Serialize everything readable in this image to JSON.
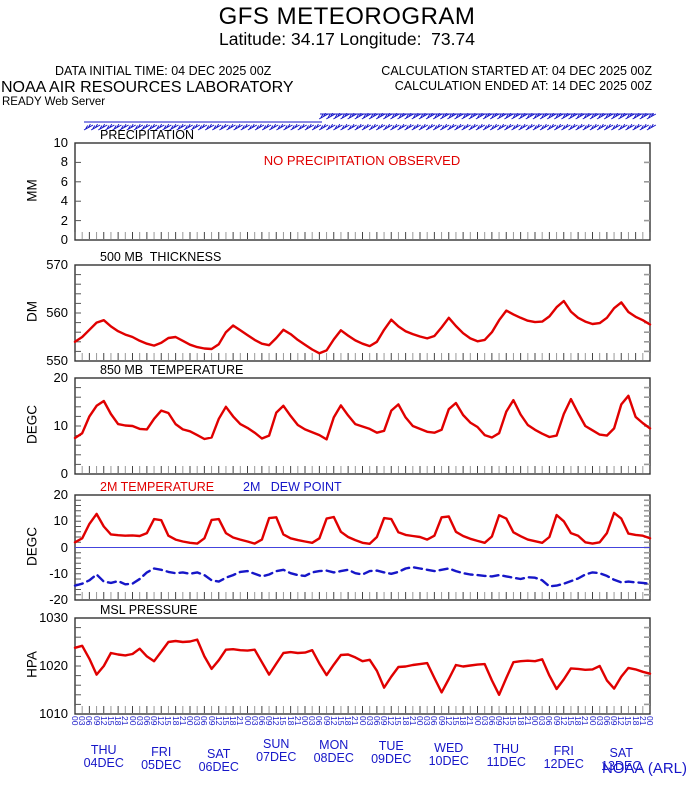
{
  "header": {
    "title": "GFS METEOROGRAM",
    "subtitle": "Latitude: 34.17 Longitude:  73.74",
    "data_initial_time": "DATA INITIAL TIME: 04 DEC 2025 00Z",
    "calc_started": "CALCULATION STARTED AT: 04 DEC 2025 00Z",
    "calc_ended": "CALCULATION ENDED AT: 14 DEC 2025 00Z",
    "org": "NOAA AIR RESOURCES LABORATORY",
    "server": "READY Web Server"
  },
  "footer": {
    "credit": "NOAA (ARL)"
  },
  "colors": {
    "red": "#e00000",
    "blue": "#1616c8",
    "axis": "#333333",
    "tick_gray": "#999999"
  },
  "x_axis": {
    "start": "04 DEC 2025 00Z",
    "end": "14 DEC 2025 00Z",
    "step_hours": 3,
    "hours": [
      "00",
      "03",
      "06",
      "09",
      "12",
      "15",
      "18",
      "21"
    ],
    "days": [
      {
        "name": "THU",
        "date": "04DEC"
      },
      {
        "name": "FRI",
        "date": "05DEC"
      },
      {
        "name": "SAT",
        "date": "06DEC"
      },
      {
        "name": "SUN",
        "date": "07DEC"
      },
      {
        "name": "MON",
        "date": "08DEC"
      },
      {
        "name": "TUE",
        "date": "09DEC"
      },
      {
        "name": "WED",
        "date": "10DEC"
      },
      {
        "name": "THU",
        "date": "11DEC"
      },
      {
        "name": "FRI",
        "date": "12DEC"
      },
      {
        "name": "SAT",
        "date": "13DEC"
      }
    ]
  },
  "chart_data": [
    {
      "type": "line",
      "title": "PRECIPITATION",
      "ylabel": "MM",
      "ylim": [
        0,
        10
      ],
      "yticks": [
        0,
        2,
        4,
        6,
        8,
        10
      ],
      "minor_step": 2,
      "annotation": "NO PRECIPITATION OBSERVED",
      "series": []
    },
    {
      "type": "line",
      "title": "500 MB  THICKNESS",
      "ylabel": "DM",
      "ylim": [
        550,
        570
      ],
      "yticks": [
        550,
        560,
        570
      ],
      "minor_step": 2,
      "series": [
        {
          "name": "500 MB THICKNESS",
          "color": "#e00000",
          "dash": false,
          "values": [
            554.0,
            555.0,
            556.5,
            558.0,
            558.5,
            557.2,
            556.2,
            555.5,
            555.0,
            554.2,
            553.6,
            553.2,
            553.8,
            554.8,
            555.0,
            554.2,
            553.4,
            552.9,
            552.6,
            552.5,
            553.5,
            556.0,
            557.4,
            556.4,
            555.4,
            554.4,
            553.6,
            553.3,
            554.8,
            556.5,
            555.6,
            554.4,
            553.4,
            552.4,
            551.6,
            552.2,
            554.5,
            556.4,
            555.3,
            554.3,
            553.6,
            553.1,
            554.0,
            556.5,
            558.6,
            557.2,
            556.2,
            555.6,
            555.1,
            554.7,
            555.2,
            557.0,
            559.0,
            557.3,
            555.8,
            554.7,
            554.1,
            554.4,
            556.0,
            558.5,
            560.5,
            559.7,
            559.0,
            558.4,
            558.1,
            558.2,
            559.3,
            561.2,
            562.5,
            560.3,
            559.0,
            558.2,
            557.7,
            557.9,
            559.0,
            561.0,
            562.2,
            560.2,
            559.2,
            558.5,
            557.6
          ]
        }
      ]
    },
    {
      "type": "line",
      "title": "850 MB  TEMPERATURE",
      "ylabel": "DEGC",
      "ylim": [
        0,
        20
      ],
      "yticks": [
        0,
        10,
        20
      ],
      "minor_step": 2,
      "series": [
        {
          "name": "850 MB TEMPERATURE",
          "color": "#e00000",
          "dash": false,
          "values": [
            7.5,
            8.5,
            12.0,
            14.2,
            15.2,
            12.5,
            10.4,
            10.1,
            10.0,
            9.4,
            9.3,
            11.5,
            13.2,
            12.7,
            10.4,
            9.3,
            8.9,
            8.1,
            7.3,
            7.6,
            11.5,
            14.0,
            12.0,
            10.4,
            9.6,
            8.6,
            7.4,
            8.0,
            12.8,
            14.2,
            12.1,
            10.2,
            9.3,
            8.7,
            8.1,
            7.2,
            11.8,
            14.3,
            12.2,
            10.4,
            9.9,
            9.4,
            8.6,
            9.0,
            13.2,
            14.5,
            11.8,
            10.0,
            9.4,
            8.8,
            8.6,
            9.2,
            13.5,
            14.8,
            12.3,
            10.7,
            9.8,
            8.1,
            7.6,
            8.5,
            13.0,
            15.4,
            12.4,
            10.2,
            9.2,
            8.4,
            7.7,
            8.0,
            12.5,
            15.6,
            12.7,
            10.0,
            9.1,
            8.2,
            8.0,
            9.5,
            14.5,
            16.3,
            11.9,
            10.6,
            9.5
          ]
        }
      ]
    },
    {
      "type": "line",
      "title": "2M TEMPERATURE",
      "title2": "2M   DEW POINT",
      "ylabel": "DEGC",
      "ylim": [
        -20,
        20
      ],
      "yticks": [
        -20,
        -10,
        0,
        10,
        20
      ],
      "minor_step": 2,
      "zero_line": true,
      "series": [
        {
          "name": "2M TEMPERATURE",
          "color": "#e00000",
          "dash": false,
          "values": [
            2.0,
            3.5,
            9.0,
            12.8,
            8.0,
            5.0,
            4.7,
            4.5,
            4.6,
            4.4,
            5.5,
            10.8,
            10.4,
            4.5,
            3.0,
            2.3,
            1.8,
            1.5,
            3.5,
            10.5,
            10.8,
            5.5,
            3.8,
            3.0,
            2.3,
            1.5,
            3.0,
            11.2,
            11.5,
            5.0,
            3.5,
            2.8,
            2.3,
            1.8,
            3.5,
            11.0,
            11.6,
            6.0,
            4.0,
            2.8,
            1.8,
            1.4,
            4.0,
            11.2,
            10.8,
            5.8,
            4.8,
            4.4,
            4.0,
            3.0,
            4.5,
            11.5,
            11.8,
            6.0,
            4.4,
            3.3,
            2.5,
            1.8,
            4.2,
            12.3,
            11.0,
            5.8,
            4.3,
            3.0,
            2.4,
            1.8,
            4.0,
            12.4,
            10.0,
            5.5,
            4.5,
            2.0,
            1.5,
            2.0,
            5.5,
            13.2,
            11.0,
            5.3,
            4.8,
            4.5,
            3.5
          ]
        },
        {
          "name": "2M DEW POINT",
          "color": "#1616c8",
          "dash": true,
          "values": [
            -14.5,
            -13.8,
            -12.5,
            -10.3,
            -13.0,
            -13.5,
            -12.8,
            -14.0,
            -13.8,
            -12.0,
            -9.5,
            -8.0,
            -8.5,
            -9.3,
            -9.8,
            -9.5,
            -10.0,
            -9.5,
            -10.5,
            -12.5,
            -13.0,
            -11.5,
            -10.5,
            -9.3,
            -9.0,
            -10.0,
            -11.0,
            -10.3,
            -9.0,
            -8.5,
            -9.8,
            -10.5,
            -10.8,
            -9.5,
            -9.0,
            -8.8,
            -9.5,
            -9.0,
            -8.5,
            -9.8,
            -10.3,
            -9.0,
            -8.8,
            -9.5,
            -10.0,
            -9.3,
            -8.0,
            -7.5,
            -8.0,
            -8.5,
            -9.0,
            -8.5,
            -8.0,
            -9.0,
            -9.8,
            -10.3,
            -10.5,
            -10.8,
            -11.0,
            -10.5,
            -11.0,
            -11.5,
            -12.0,
            -11.3,
            -11.5,
            -12.5,
            -14.8,
            -14.5,
            -13.8,
            -12.8,
            -11.8,
            -10.3,
            -9.5,
            -9.8,
            -10.8,
            -12.3,
            -13.3,
            -13.0,
            -13.3,
            -13.5,
            -13.8
          ]
        }
      ]
    },
    {
      "type": "line",
      "title": "MSL PRESSURE",
      "ylabel": "HPA",
      "ylim": [
        1010,
        1030
      ],
      "yticks": [
        1010,
        1020,
        1030
      ],
      "minor_step": 2,
      "series": [
        {
          "name": "MSL PRESSURE",
          "color": "#e00000",
          "dash": false,
          "values": [
            1023.8,
            1024.2,
            1021.5,
            1018.2,
            1020.0,
            1022.7,
            1022.4,
            1022.2,
            1022.5,
            1023.6,
            1022.0,
            1021.0,
            1023.0,
            1025.0,
            1025.2,
            1025.0,
            1025.1,
            1025.5,
            1022.0,
            1019.4,
            1021.2,
            1023.4,
            1023.5,
            1023.3,
            1023.2,
            1023.4,
            1020.8,
            1018.2,
            1020.5,
            1022.7,
            1022.9,
            1022.7,
            1022.8,
            1023.3,
            1020.5,
            1018.1,
            1020.3,
            1022.3,
            1022.4,
            1021.8,
            1021.0,
            1021.3,
            1019.0,
            1015.5,
            1017.8,
            1019.8,
            1019.9,
            1020.2,
            1020.4,
            1020.6,
            1017.5,
            1014.5,
            1017.3,
            1020.2,
            1019.9,
            1020.1,
            1020.3,
            1020.4,
            1017.0,
            1014.0,
            1017.5,
            1020.8,
            1021.0,
            1021.1,
            1021.0,
            1021.4,
            1018.0,
            1015.2,
            1017.2,
            1019.5,
            1019.4,
            1019.2,
            1019.3,
            1020.0,
            1017.0,
            1015.3,
            1017.8,
            1019.6,
            1019.3,
            1018.8,
            1018.4
          ]
        }
      ]
    }
  ]
}
